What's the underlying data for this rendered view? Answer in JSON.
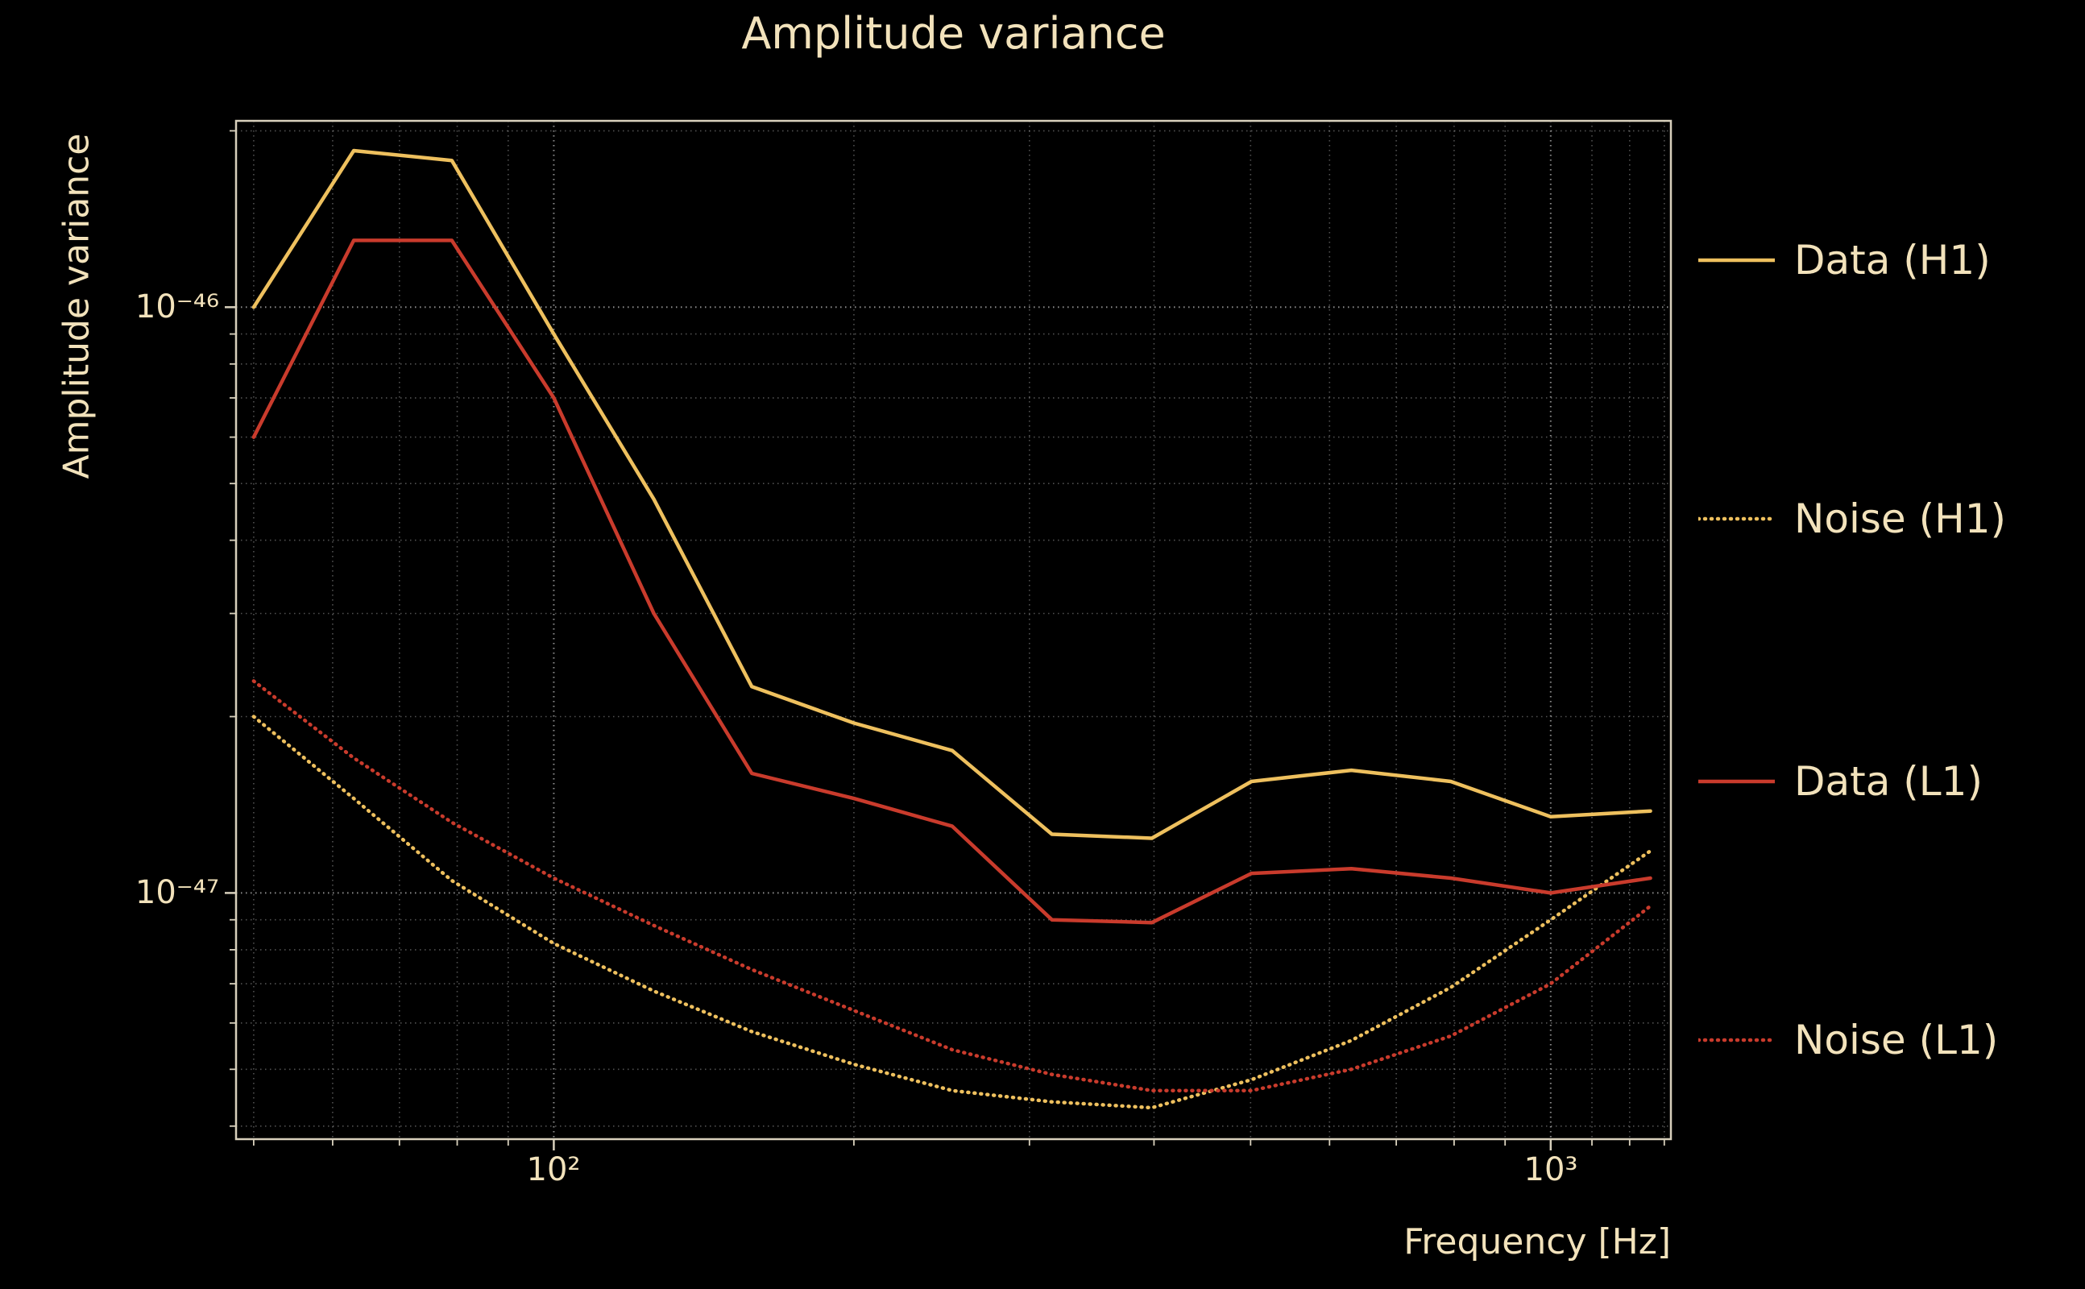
{
  "title": "Amplitude variance",
  "axes": {
    "xlabel": "Frequency [Hz]",
    "ylabel": "Amplitude variance",
    "x_ticks": [
      "10²",
      "10³"
    ],
    "y_ticks": [
      "10⁻⁴⁶",
      "10⁻⁴⁷"
    ]
  },
  "colors": {
    "background": "#000000",
    "text": "#f2e2bb",
    "grid": "#ffffff",
    "frame": "#d8d0bc",
    "h1": "#eec05e",
    "l1": "#c93b2c"
  },
  "legend": {
    "items": [
      {
        "label": "Data (H1)"
      },
      {
        "label": "Noise (H1)"
      },
      {
        "label": "Data (L1)"
      },
      {
        "label": "Noise (L1)"
      }
    ]
  },
  "chart_data": {
    "type": "line",
    "title": "Amplitude variance",
    "xlabel": "Frequency [Hz]",
    "ylabel": "Amplitude variance",
    "x_scale": "log",
    "y_scale": "log",
    "xlim": [
      48,
      1320
    ],
    "ylim": [
      3.8e-48,
      2.08e-46
    ],
    "grid": "dotted major+minor, log-log",
    "legend_position": "right-outside",
    "x": [
      50,
      63,
      79,
      100,
      126,
      158,
      200,
      251,
      316,
      398,
      501,
      631,
      794,
      1000,
      1259
    ],
    "series": [
      {
        "name": "Data (H1)",
        "style": "solid",
        "color": "#eec05e",
        "values": [
          1e-46,
          1.85e-46,
          1.78e-46,
          9e-47,
          4.7e-47,
          2.25e-47,
          1.95e-47,
          1.75e-47,
          1.26e-47,
          1.24e-47,
          1.55e-47,
          1.62e-47,
          1.55e-47,
          1.35e-47,
          1.38e-47
        ]
      },
      {
        "name": "Noise (H1)",
        "style": "dotted",
        "color": "#eec05e",
        "values": [
          2e-47,
          1.45e-47,
          1.05e-47,
          8.2e-48,
          6.8e-48,
          5.8e-48,
          5.1e-48,
          4.6e-48,
          4.4e-48,
          4.3e-48,
          4.8e-48,
          5.6e-48,
          6.9e-48,
          9e-48,
          1.18e-47
        ]
      },
      {
        "name": "Data (L1)",
        "style": "solid",
        "color": "#c93b2c",
        "values": [
          6e-47,
          1.3e-46,
          1.3e-46,
          7e-47,
          3e-47,
          1.6e-47,
          1.45e-47,
          1.3e-47,
          9e-48,
          8.9e-48,
          1.08e-47,
          1.1e-47,
          1.06e-47,
          1e-47,
          1.06e-47
        ]
      },
      {
        "name": "Noise (L1)",
        "style": "dotted",
        "color": "#c93b2c",
        "values": [
          2.3e-47,
          1.7e-47,
          1.32e-47,
          1.06e-47,
          8.8e-48,
          7.4e-48,
          6.3e-48,
          5.4e-48,
          4.9e-48,
          4.6e-48,
          4.6e-48,
          5e-48,
          5.7e-48,
          7e-48,
          9.5e-48
        ]
      }
    ]
  }
}
